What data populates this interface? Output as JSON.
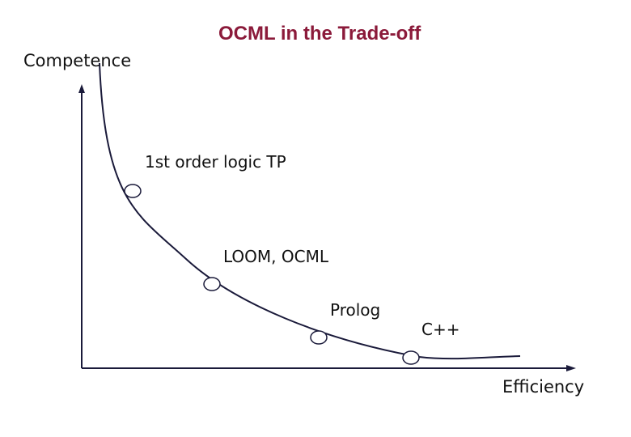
{
  "title": "OCML in the Trade-off",
  "y_axis_label": "Competence",
  "x_axis_label": "Efficiency",
  "points": [
    {
      "label": "1st order logic TP"
    },
    {
      "label": "LOOM, OCML"
    },
    {
      "label": "Prolog"
    },
    {
      "label": "C++"
    }
  ],
  "colors": {
    "title": "#8b1a3a",
    "curve": "#1a1a3a",
    "axes": "#1a1a3a",
    "marker_fill": "#ffffff"
  }
}
